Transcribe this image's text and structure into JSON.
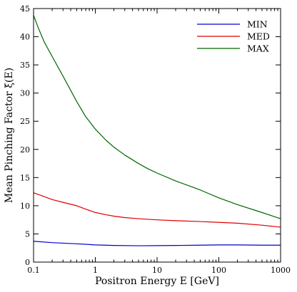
{
  "chart_data": {
    "type": "line",
    "title": "",
    "xlabel": "Positron Energy E [GeV]",
    "ylabel": "Mean Pinching Factor ξ̄(E)",
    "xscale": "log",
    "xlim": [
      0.1,
      1000
    ],
    "ylim": [
      0,
      45
    ],
    "grid": false,
    "legend_position": "top-right",
    "xticks": [
      0.1,
      1,
      10,
      100,
      1000
    ],
    "xtick_labels": [
      "0.1",
      "1",
      "10",
      "100",
      "1000"
    ],
    "yticks": [
      0,
      5,
      10,
      15,
      20,
      25,
      30,
      35,
      40,
      45
    ],
    "ytick_labels": [
      "0",
      "5",
      "10",
      "15",
      "20",
      "25",
      "30",
      "35",
      "40",
      "45"
    ],
    "series": [
      {
        "name": "MIN",
        "color": "#0000cc",
        "x": [
          0.1,
          0.2,
          0.5,
          1,
          2,
          5,
          10,
          20,
          50,
          100,
          200,
          500,
          1000
        ],
        "y": [
          3.7,
          3.45,
          3.25,
          3.05,
          2.95,
          2.9,
          2.92,
          2.95,
          3.0,
          3.05,
          3.05,
          3.0,
          3.0
        ]
      },
      {
        "name": "MED",
        "color": "#dd0000",
        "x": [
          0.1,
          0.15,
          0.2,
          0.3,
          0.5,
          0.7,
          1,
          1.5,
          2,
          3,
          5,
          10,
          20,
          50,
          100,
          200,
          500,
          1000
        ],
        "y": [
          12.3,
          11.6,
          11.1,
          10.6,
          10.0,
          9.4,
          8.8,
          8.4,
          8.15,
          7.9,
          7.7,
          7.5,
          7.35,
          7.2,
          7.05,
          6.9,
          6.55,
          6.2
        ]
      },
      {
        "name": "MAX",
        "color": "#006600",
        "x": [
          0.1,
          0.12,
          0.15,
          0.2,
          0.3,
          0.5,
          0.7,
          1,
          1.5,
          2,
          3,
          5,
          7,
          10,
          20,
          50,
          100,
          200,
          500,
          1000
        ],
        "y": [
          43.8,
          41.5,
          39.0,
          36.5,
          33.0,
          28.5,
          25.8,
          23.6,
          21.6,
          20.4,
          19.0,
          17.5,
          16.6,
          15.8,
          14.4,
          12.8,
          11.4,
          10.2,
          8.8,
          7.7
        ]
      }
    ]
  }
}
